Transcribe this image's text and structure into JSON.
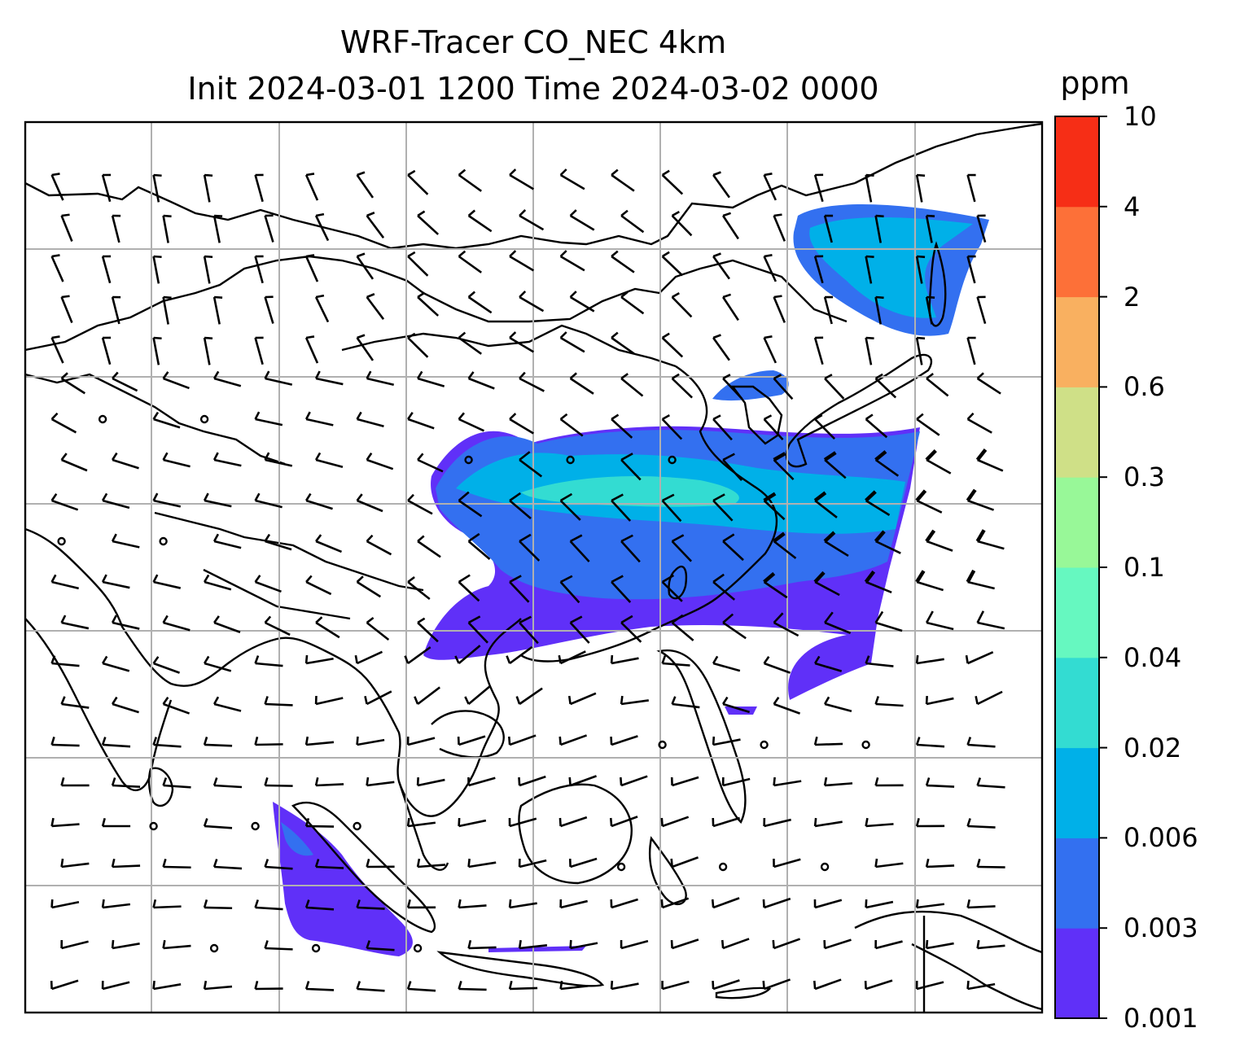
{
  "title": {
    "line1": "WRF-Tracer CO_NEC 4km",
    "line2": "Init 2024-03-01 1200 Time 2024-03-02 0000"
  },
  "colorbar": {
    "unit": "ppm",
    "levels": [
      "0.001",
      "0.003",
      "0.006",
      "0.02",
      "0.04",
      "0.1",
      "0.3",
      "0.6",
      "2",
      "4",
      "10"
    ],
    "colors": [
      "#6030f8",
      "#3370f0",
      "#00b0e8",
      "#33dcd2",
      "#66f8c0",
      "#98f898",
      "#cfe087",
      "#f9b060",
      "#fd7038",
      "#f62e16"
    ]
  },
  "map": {
    "frame": "black",
    "gridlines": "on",
    "grid_color": "#b0b0b0",
    "coastline_color": "#000000",
    "wind_barbs": "on"
  }
}
